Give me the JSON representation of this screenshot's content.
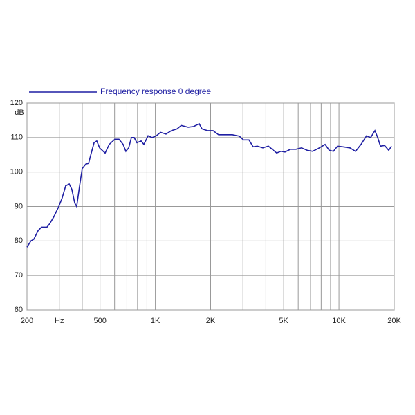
{
  "chart_data": {
    "type": "line",
    "x_scale": "log",
    "grid": true,
    "y_unit": "dB",
    "xlim": [
      200,
      20000
    ],
    "ylim": [
      60,
      120
    ],
    "yticks": [
      60,
      70,
      80,
      90,
      100,
      110,
      120
    ],
    "xticks": [
      200,
      {
        "value": 300,
        "label": "Hz"
      },
      500,
      {
        "value": 1000,
        "label": "1K"
      },
      {
        "value": 2000,
        "label": "2K"
      },
      {
        "value": 5000,
        "label": "5K"
      },
      {
        "value": 10000,
        "label": "10K"
      },
      {
        "value": 20000,
        "label": "20K"
      }
    ],
    "x_minor_ticks": [
      400,
      600,
      700,
      800,
      900,
      3000,
      4000,
      6000,
      7000,
      8000,
      9000
    ],
    "x": [
      200,
      210,
      218,
      230,
      240,
      257,
      266,
      280,
      298,
      311,
      325,
      340,
      351,
      364,
      373,
      387,
      400,
      418,
      433,
      448,
      464,
      480,
      497,
      533,
      561,
      602,
      634,
      668,
      691,
      716,
      741,
      767,
      794,
      837,
      866,
      913,
      961,
      1013,
      1067,
      1143,
      1225,
      1313,
      1384,
      1509,
      1617,
      1734,
      1795,
      1924,
      2062,
      2210,
      2410,
      2628,
      2867,
      3020,
      3236,
      3409,
      3592,
      3850,
      4126,
      4347,
      4580,
      4825,
      5083,
      5448,
      5839,
      6257,
      6706,
      7187,
      7703,
      8115,
      8403,
      8853,
      9327,
      9825,
      10530,
      11480,
      12310,
      13190,
      14130,
      14890,
      15700,
      16250,
      16830,
      17720,
      18670,
      19330
    ],
    "series": [
      {
        "name": "Frequency response 0 degree",
        "color": "#1f1fa3",
        "values": [
          78.2,
          80,
          80.5,
          83,
          84,
          84,
          85,
          87,
          90,
          92.5,
          96,
          96.5,
          95,
          91,
          90,
          96,
          101,
          102.3,
          102.5,
          105.5,
          108.5,
          109,
          107,
          105.5,
          108,
          109.5,
          109.5,
          108,
          106,
          107,
          110,
          110,
          108.5,
          109,
          108,
          110.5,
          110,
          110.5,
          111.5,
          111,
          112,
          112.5,
          113.5,
          113,
          113.2,
          114,
          112.5,
          112,
          112,
          110.8,
          110.8,
          110.8,
          110.4,
          109.3,
          109.3,
          107.3,
          107.5,
          107,
          107.5,
          106.5,
          105.5,
          106,
          105.8,
          106.6,
          106.6,
          107,
          106.3,
          106,
          106.8,
          107.5,
          108,
          106.3,
          106,
          107.5,
          107.3,
          107,
          106,
          108,
          110.5,
          110,
          112,
          110,
          107.5,
          107.7,
          106.3,
          107.5
        ]
      }
    ]
  }
}
